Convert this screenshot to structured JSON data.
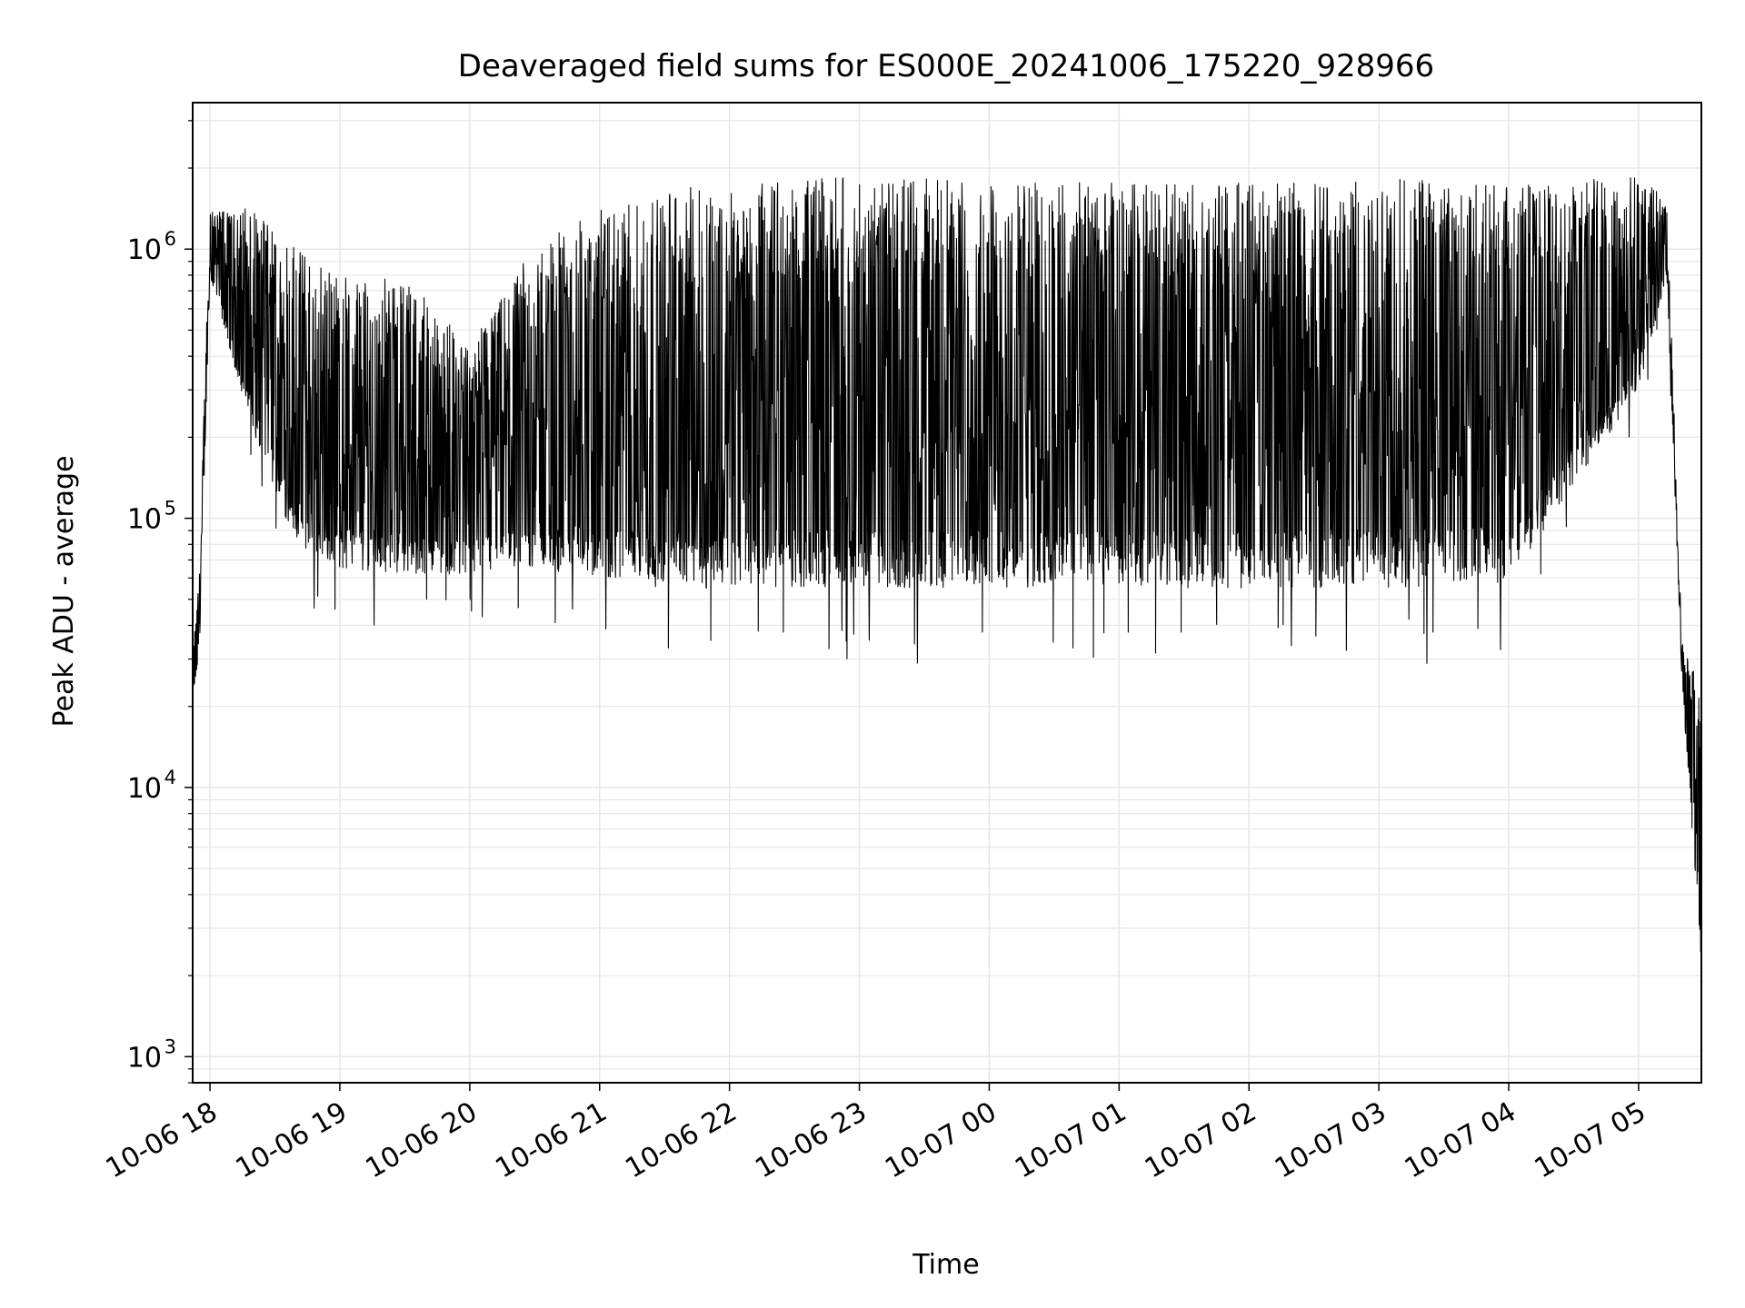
{
  "chart_data": {
    "type": "line",
    "title": "Deaveraged field sums for ES000E_20241006_175220_928966",
    "xlabel": "Time",
    "ylabel": "Peak ADU - average",
    "x_scale": "time",
    "y_scale": "log",
    "xlim": [
      "2024-10-06 17:52",
      "2024-10-07 05:29"
    ],
    "ylim": [
      800,
      3500000
    ],
    "grid": true,
    "grid_minor_y": true,
    "x_ticks": [
      {
        "time": "2024-10-06 18:00",
        "label": "10-06 18"
      },
      {
        "time": "2024-10-06 19:00",
        "label": "10-06 19"
      },
      {
        "time": "2024-10-06 20:00",
        "label": "10-06 20"
      },
      {
        "time": "2024-10-06 21:00",
        "label": "10-06 21"
      },
      {
        "time": "2024-10-06 22:00",
        "label": "10-06 22"
      },
      {
        "time": "2024-10-06 23:00",
        "label": "10-06 23"
      },
      {
        "time": "2024-10-07 00:00",
        "label": "10-07 00"
      },
      {
        "time": "2024-10-07 01:00",
        "label": "10-07 01"
      },
      {
        "time": "2024-10-07 02:00",
        "label": "10-07 02"
      },
      {
        "time": "2024-10-07 03:00",
        "label": "10-07 03"
      },
      {
        "time": "2024-10-07 04:00",
        "label": "10-07 04"
      },
      {
        "time": "2024-10-07 05:00",
        "label": "10-07 05"
      }
    ],
    "y_ticks": [
      {
        "value": 1000,
        "base": "10",
        "exp": "3"
      },
      {
        "value": 10000,
        "base": "10",
        "exp": "4"
      },
      {
        "value": 100000,
        "base": "10",
        "exp": "5"
      },
      {
        "value": 1000000,
        "base": "10",
        "exp": "6"
      }
    ],
    "line_color": "#000000",
    "grid_color": "#e6e6e6",
    "envelope": {
      "description_of_series": "dense rapidly oscillating signal; per-hour approximate lower baseline and upper peak levels",
      "time": [
        "2024-10-06 17:52",
        "2024-10-06 17:55",
        "2024-10-06 18:00",
        "2024-10-06 18:20",
        "2024-10-06 18:40",
        "2024-10-06 19:00",
        "2024-10-06 19:30",
        "2024-10-06 20:00",
        "2024-10-06 20:30",
        "2024-10-06 21:00",
        "2024-10-06 21:30",
        "2024-10-06 22:00",
        "2024-10-06 23:00",
        "2024-10-07 00:00",
        "2024-10-07 01:00",
        "2024-10-07 02:00",
        "2024-10-07 03:00",
        "2024-10-07 04:00",
        "2024-10-07 05:00",
        "2024-10-07 05:13",
        "2024-10-07 05:20",
        "2024-10-07 05:29"
      ],
      "baseline": [
        22000,
        30000,
        800000,
        200000,
        80000,
        65000,
        62000,
        62000,
        65000,
        60000,
        55000,
        55000,
        55000,
        55000,
        55000,
        55000,
        55000,
        58000,
        300000,
        800000,
        25000,
        2000
      ],
      "peak": [
        30000,
        60000,
        1400000,
        1300000,
        900000,
        700000,
        700000,
        400000,
        900000,
        1200000,
        1400000,
        1500000,
        1600000,
        1500000,
        1500000,
        1500000,
        1600000,
        1500000,
        1700000,
        1500000,
        35000,
        20000
      ]
    }
  }
}
